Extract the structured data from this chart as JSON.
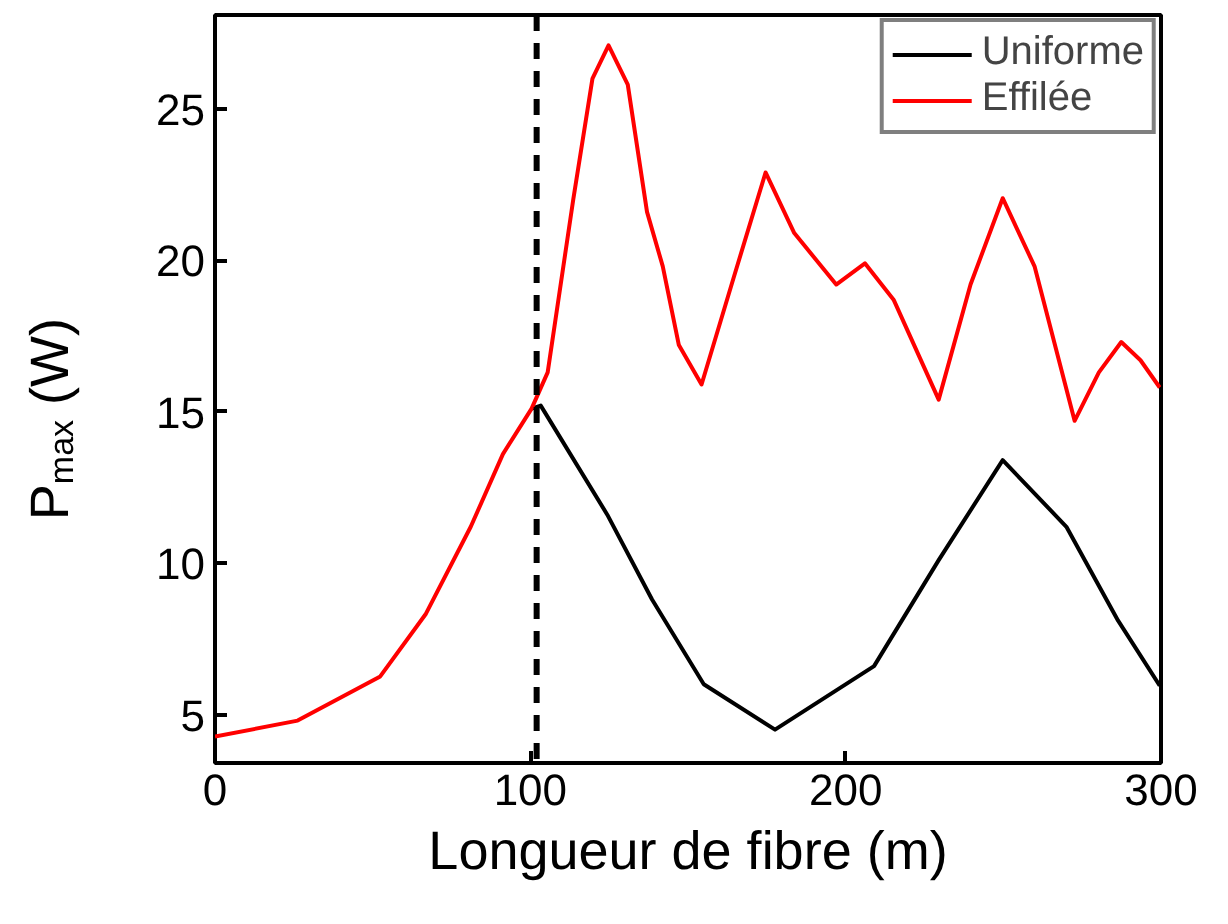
{
  "chart_data": {
    "type": "line",
    "xlabel": "Longueur de fibre (m)",
    "ylabel": "P$_{max}$ (W)",
    "xlim": [
      0,
      300
    ],
    "ylim": [
      3.4,
      28.1
    ],
    "xticks": [
      0,
      100,
      200,
      300
    ],
    "yticks": [
      5,
      10,
      15,
      20,
      25
    ],
    "grid": false,
    "legend": "top right",
    "line_style": "solid",
    "marker": "none",
    "ref_lines": [
      {
        "axis": "x",
        "value": 102,
        "color": "#000000",
        "line_style": "dashed"
      }
    ],
    "series": [
      {
        "name": "Uniforme",
        "color": "#000000",
        "x": [
          100.4,
          103.3,
          124.4,
          138.6,
          155,
          177.6,
          209,
          229.5,
          249.8,
          270,
          286.4,
          299.6
        ],
        "values": [
          15.1,
          15.2,
          11.6,
          8.8,
          6.0,
          4.5,
          6.6,
          10.1,
          13.4,
          11.2,
          8.1,
          5.95
        ]
      },
      {
        "name": "Effilée",
        "color": "#ff0000",
        "x": [
          0,
          26.2,
          52.4,
          66.9,
          81.1,
          91.3,
          100.4,
          105.5,
          113.6,
          119.7,
          124.8,
          130.9,
          137,
          142,
          147.1,
          154.3,
          164.4,
          174.6,
          183.7,
          197,
          206.1,
          215.2,
          229.5,
          239.6,
          249.8,
          259.9,
          272.6,
          280.3,
          287.4,
          293.5,
          299.6
        ],
        "values": [
          4.27,
          4.8,
          6.26,
          8.33,
          11.2,
          13.6,
          15.1,
          16.3,
          22.0,
          26.0,
          27.1,
          25.8,
          21.6,
          19.8,
          17.2,
          15.9,
          19.4,
          22.9,
          20.9,
          19.2,
          19.9,
          18.7,
          15.4,
          19.2,
          22.05,
          19.8,
          14.7,
          16.3,
          17.3,
          16.7,
          15.8
        ]
      }
    ]
  }
}
